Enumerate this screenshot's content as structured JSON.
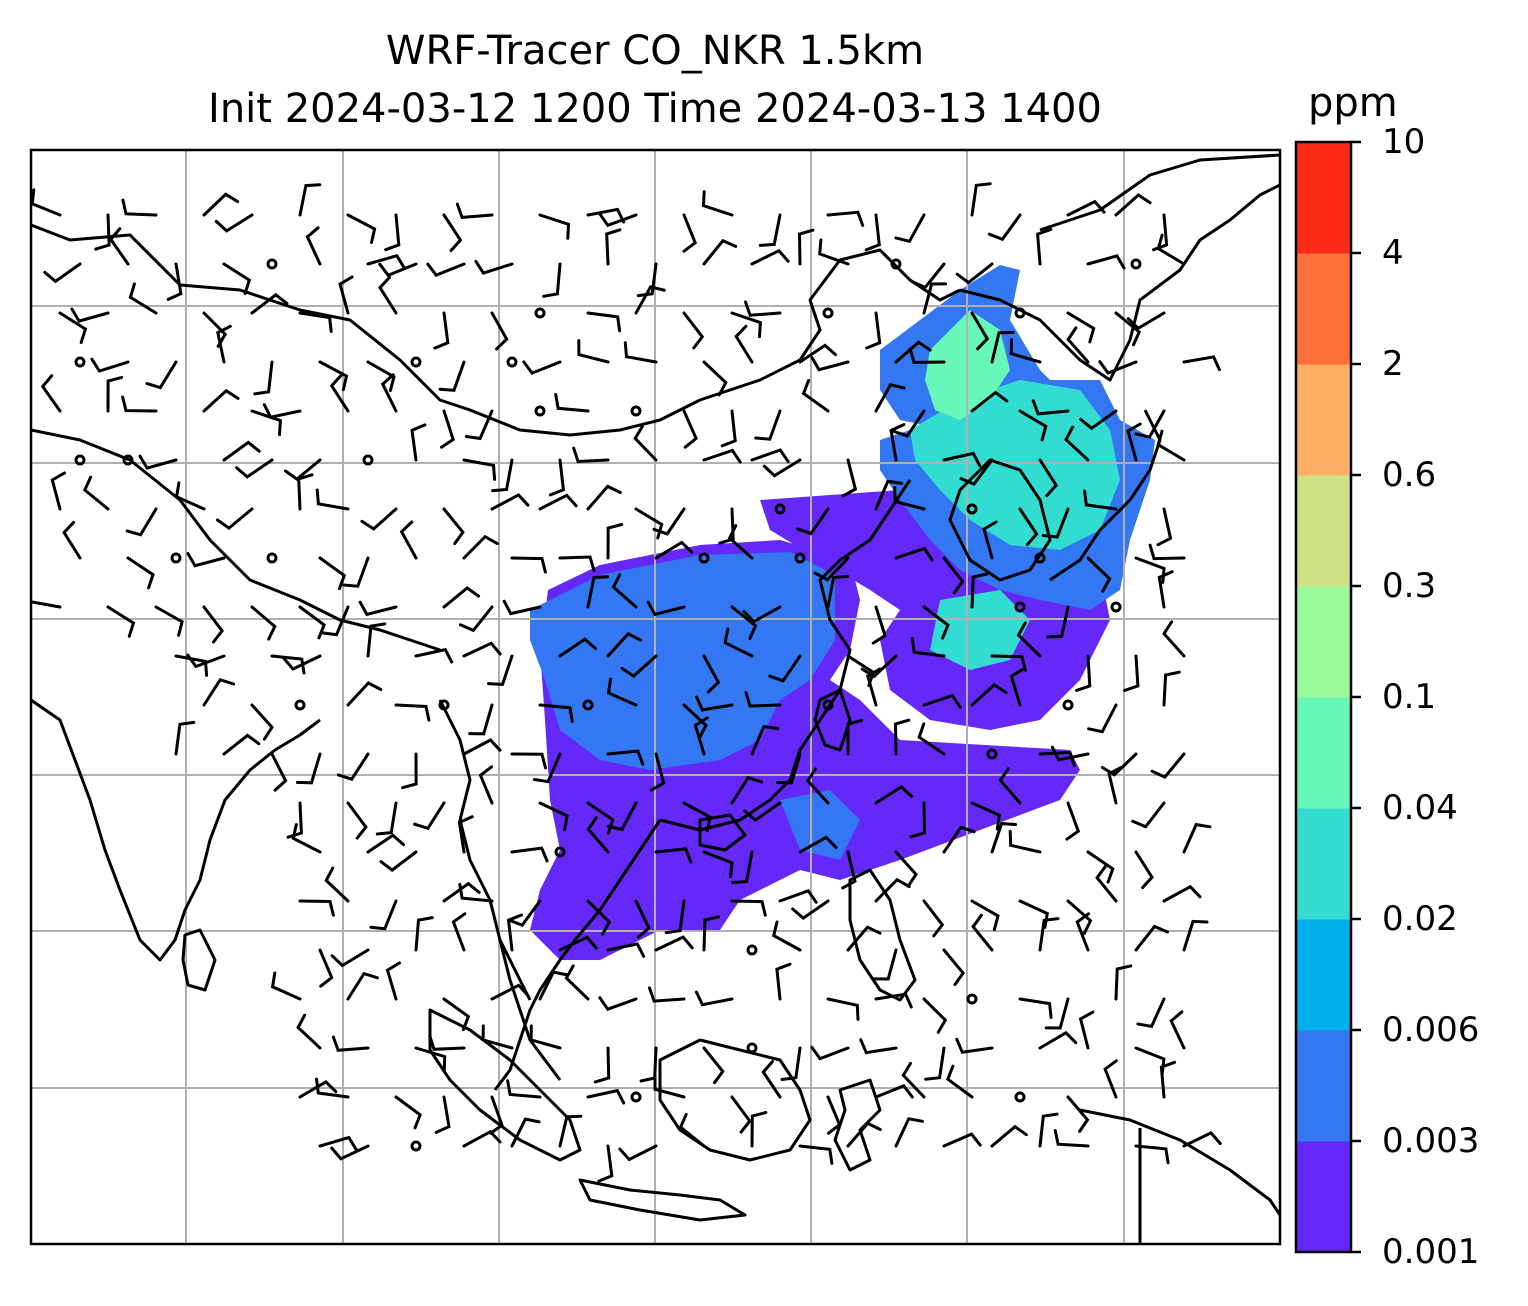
{
  "title": {
    "line1": "WRF-Tracer CO_NKR 1.5km",
    "line2": "Init 2024-03-12 1200 Time 2024-03-13 1400"
  },
  "colorbar": {
    "unit": "ppm",
    "levels": [
      "0.001",
      "0.003",
      "0.006",
      "0.02",
      "0.04",
      "0.1",
      "0.3",
      "0.6",
      "2",
      "4",
      "10"
    ],
    "colors": [
      "#6428f8",
      "#3377f2",
      "#01b0ea",
      "#33dcd0",
      "#67f7b8",
      "#9bfb9a",
      "#cde287",
      "#fdb064",
      "#fe7139",
      "#fd2a17"
    ]
  },
  "map": {
    "coastline_color": "#000000",
    "grid_color": "#b0b0b0",
    "frame_color": "#000000"
  }
}
